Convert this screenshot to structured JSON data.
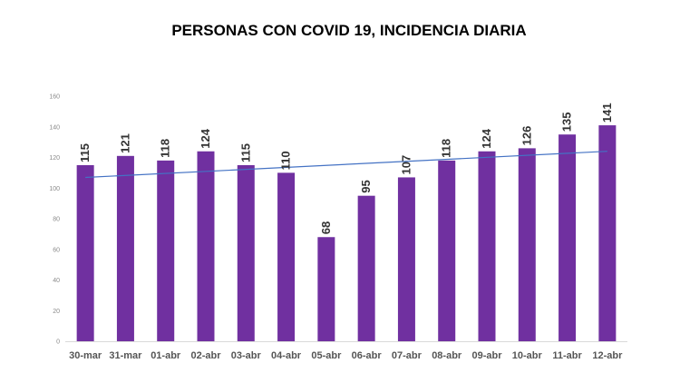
{
  "chart_data": {
    "type": "bar",
    "title": "PERSONAS CON COVID 19, INCIDENCIA DIARIA",
    "xlabel": "",
    "ylabel": "",
    "categories": [
      "30-mar",
      "31-mar",
      "01-abr",
      "02-abr",
      "03-abr",
      "04-abr",
      "05-abr",
      "06-abr",
      "07-abr",
      "08-abr",
      "09-abr",
      "10-abr",
      "11-abr",
      "12-abr"
    ],
    "values": [
      115,
      121,
      118,
      124,
      115,
      110,
      68,
      95,
      107,
      118,
      124,
      126,
      135,
      141
    ],
    "ylim": [
      0,
      160
    ],
    "yticks": [
      0,
      20,
      40,
      60,
      80,
      100,
      120,
      140,
      160
    ],
    "trendline": {
      "type": "linear",
      "show": true
    },
    "grid": false,
    "legend": "none",
    "data_labels": true,
    "colors": {
      "bar": "#7030A0",
      "trendline": "#4472C4",
      "axis": "#d9d9d9"
    }
  }
}
